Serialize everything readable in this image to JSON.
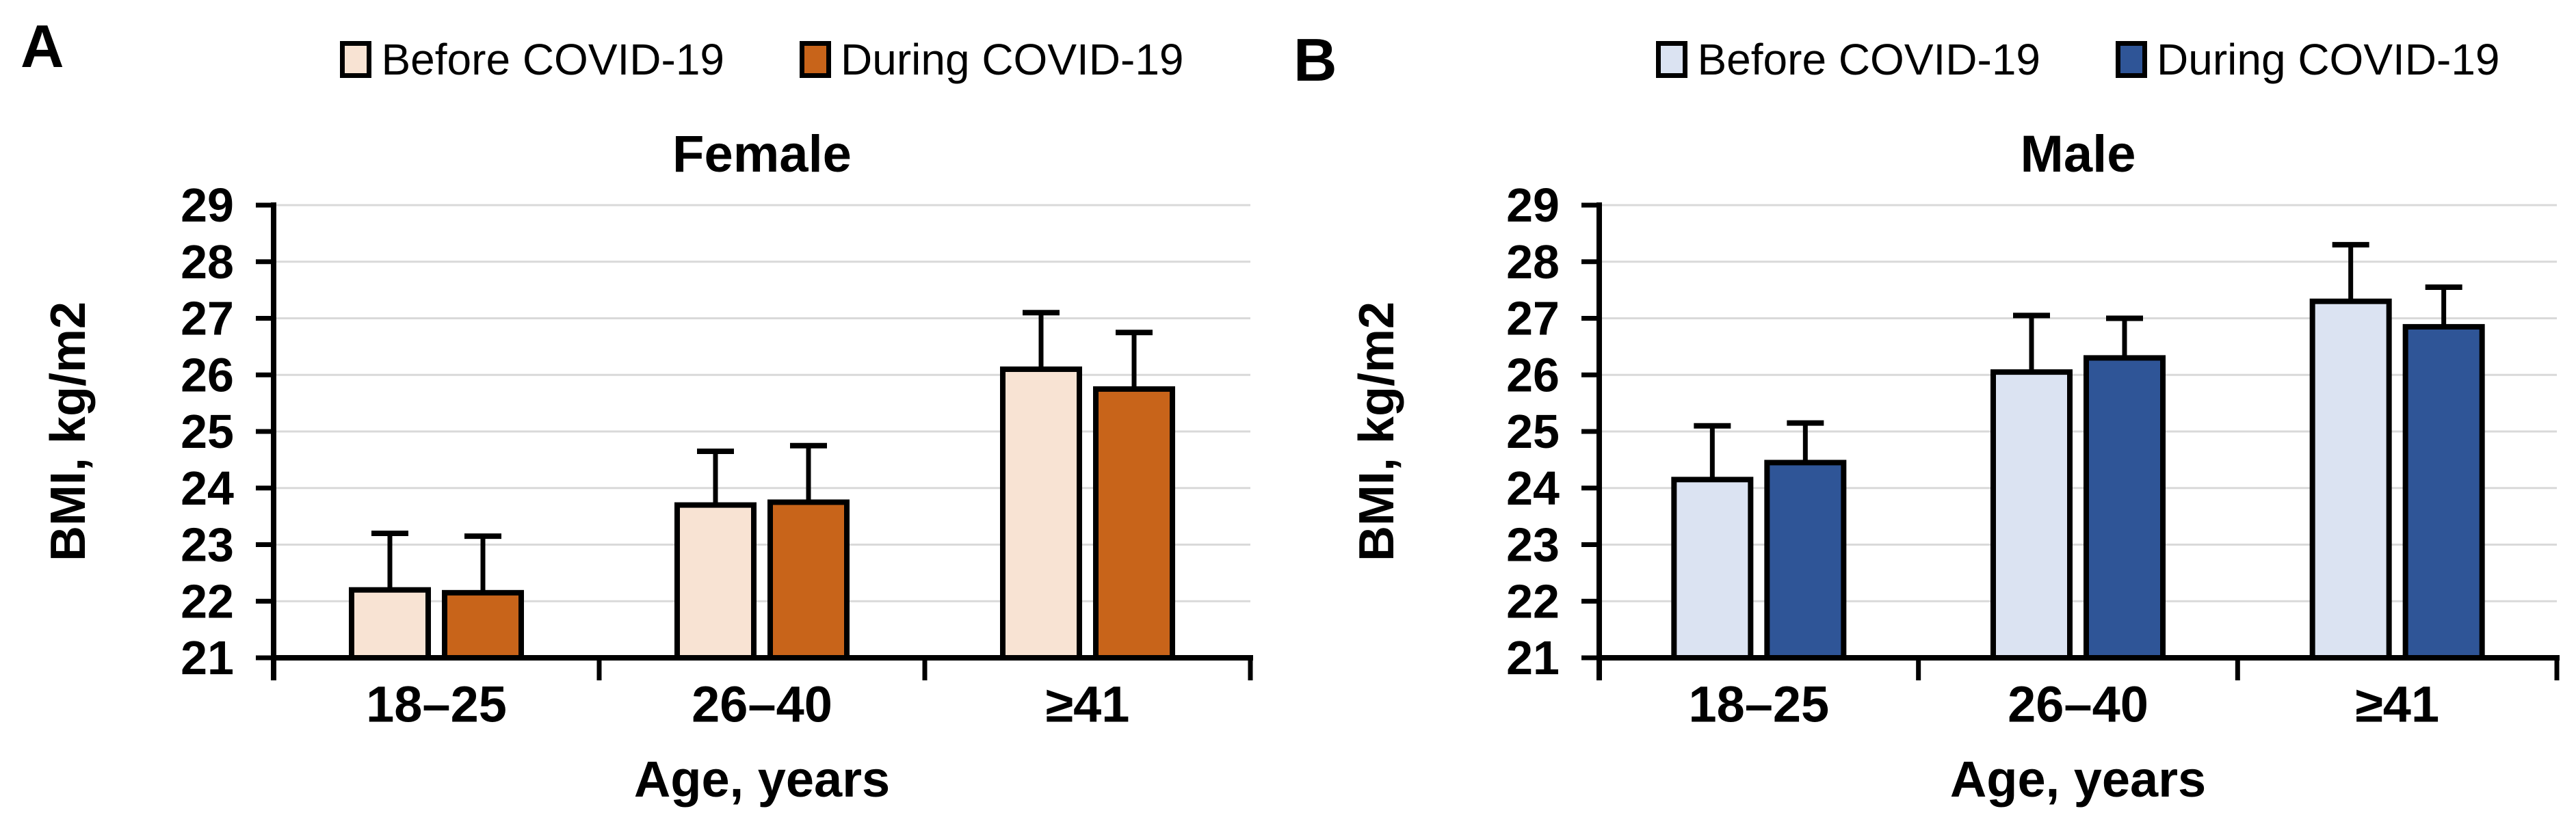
{
  "page": {
    "background": "#FFFFFF"
  },
  "styles": {
    "grid_color": "#D9D9D9",
    "axis_color": "#000000",
    "bar_outline_color": "#000000",
    "error_bar_color": "#000000",
    "text_color": "#000000"
  },
  "chart_data": [
    {
      "type": "bar",
      "panel_label": "A",
      "title": "Female",
      "xlabel": "Age, years",
      "ylabel": "BMI, kg/m2",
      "categories": [
        "18–25",
        "26–40",
        "≥41"
      ],
      "ylim": [
        21,
        29
      ],
      "y_ticks": [
        21,
        22,
        23,
        24,
        25,
        26,
        27,
        28,
        29
      ],
      "grid": true,
      "legend_position": "top",
      "error_bars": "upper",
      "series": [
        {
          "name": "Before COVID-19",
          "color": "#F8E3D3",
          "values": [
            22.2,
            23.7,
            26.1
          ],
          "error_upper": [
            1.0,
            0.95,
            1.0
          ]
        },
        {
          "name": "During COVID-19",
          "color": "#C8641A",
          "values": [
            22.15,
            23.75,
            25.75
          ],
          "error_upper": [
            1.0,
            1.0,
            1.0
          ]
        }
      ]
    },
    {
      "type": "bar",
      "panel_label": "B",
      "title": "Male",
      "xlabel": "Age, years",
      "ylabel": "BMI, kg/m2",
      "categories": [
        "18–25",
        "26–40",
        "≥41"
      ],
      "ylim": [
        21,
        29
      ],
      "y_ticks": [
        21,
        22,
        23,
        24,
        25,
        26,
        27,
        28,
        29
      ],
      "grid": true,
      "legend_position": "top",
      "error_bars": "upper",
      "series": [
        {
          "name": "Before COVID-19",
          "color": "#DBE3F2",
          "values": [
            24.15,
            26.05,
            27.3
          ],
          "error_upper": [
            0.95,
            1.0,
            1.0
          ]
        },
        {
          "name": "During COVID-19",
          "color": "#2F5597",
          "values": [
            24.45,
            26.3,
            26.85
          ],
          "error_upper": [
            0.7,
            0.7,
            0.7
          ]
        }
      ]
    }
  ]
}
